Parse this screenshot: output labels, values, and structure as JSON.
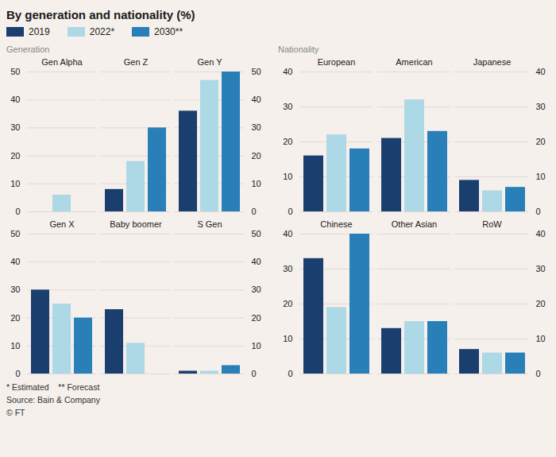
{
  "title": "By generation and nationality (%)",
  "chart_data": [
    {
      "type": "bar",
      "subtitle": "Generation",
      "categories": [
        "Gen Alpha",
        "Gen Z",
        "Gen Y"
      ],
      "series": [
        {
          "name": "2019",
          "color": "#1a3f6f",
          "values": [
            0,
            8,
            36
          ]
        },
        {
          "name": "2022*",
          "color": "#add8e6",
          "values": [
            6,
            18,
            47
          ]
        },
        {
          "name": "2030**",
          "color": "#2980b9",
          "values": [
            0,
            30,
            50
          ]
        }
      ],
      "ylim": [
        0,
        50
      ],
      "yticks": [
        0,
        10,
        20,
        30,
        40,
        50
      ],
      "grid": true
    },
    {
      "type": "bar",
      "subtitle": "Nationality",
      "categories": [
        "European",
        "American",
        "Japanese"
      ],
      "series": [
        {
          "name": "2019",
          "color": "#1a3f6f",
          "values": [
            16,
            21,
            9
          ]
        },
        {
          "name": "2022*",
          "color": "#add8e6",
          "values": [
            22,
            32,
            6
          ]
        },
        {
          "name": "2030**",
          "color": "#2980b9",
          "values": [
            18,
            23,
            7
          ]
        }
      ],
      "ylim": [
        0,
        40
      ],
      "yticks": [
        0,
        10,
        20,
        30,
        40
      ],
      "grid": true
    },
    {
      "type": "bar",
      "categories": [
        "Gen X",
        "Baby boomer",
        "S Gen"
      ],
      "series": [
        {
          "name": "2019",
          "color": "#1a3f6f",
          "values": [
            30,
            23,
            1
          ]
        },
        {
          "name": "2022*",
          "color": "#add8e6",
          "values": [
            25,
            11,
            1
          ]
        },
        {
          "name": "2030**",
          "color": "#2980b9",
          "values": [
            20,
            0,
            3
          ]
        }
      ],
      "ylim": [
        0,
        50
      ],
      "yticks": [
        0,
        10,
        20,
        30,
        40,
        50
      ],
      "grid": true
    },
    {
      "type": "bar",
      "categories": [
        "Chinese",
        "Other Asian",
        "RoW"
      ],
      "series": [
        {
          "name": "2019",
          "color": "#1a3f6f",
          "values": [
            33,
            13,
            7
          ]
        },
        {
          "name": "2022*",
          "color": "#add8e6",
          "values": [
            19,
            15,
            6
          ]
        },
        {
          "name": "2030**",
          "color": "#2980b9",
          "values": [
            40,
            15,
            6
          ]
        }
      ],
      "ylim": [
        0,
        40
      ],
      "yticks": [
        0,
        10,
        20,
        30,
        40
      ],
      "grid": true
    }
  ],
  "annotations": [
    "* Estimated    ** Forecast",
    "Source: Bain & Company",
    "© FT"
  ]
}
